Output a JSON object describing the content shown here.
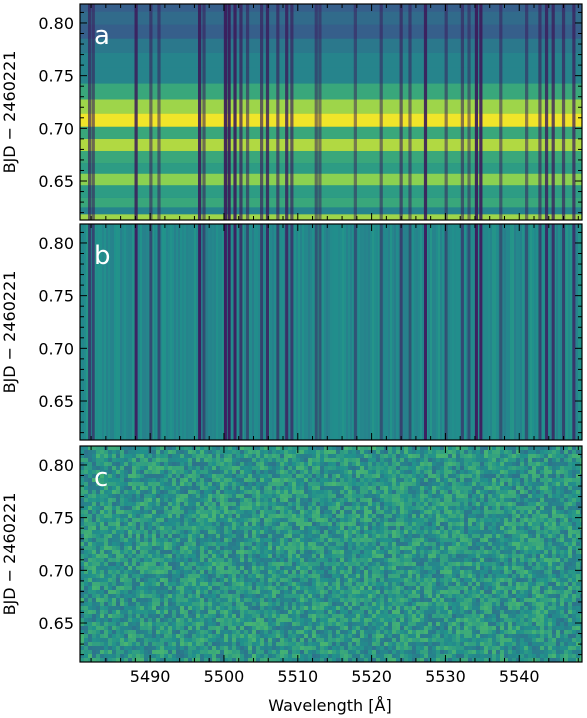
{
  "figure": {
    "xlabel": "Wavelength [Å]",
    "colormap": [
      "#440154",
      "#3b528b",
      "#21918c",
      "#5ec962",
      "#fde725"
    ]
  },
  "chart_data": [
    {
      "type": "heatmap",
      "panel": "a",
      "ylabel": "BJD − 2460221",
      "xlim": [
        5480.5,
        5548.5
      ],
      "ylim": [
        0.613,
        0.818
      ],
      "xticks": [
        5490,
        5500,
        5510,
        5520,
        5530,
        5540
      ],
      "yticks": [
        0.65,
        0.7,
        0.75,
        0.8
      ],
      "ytick_labels": [
        "0.65",
        "0.70",
        "0.75",
        "0.80"
      ],
      "row_brightness": [
        {
          "y": 0.615,
          "level": 0.85
        },
        {
          "y": 0.622,
          "level": 0.45
        },
        {
          "y": 0.628,
          "level": 0.6
        },
        {
          "y": 0.64,
          "level": 0.55
        },
        {
          "y": 0.652,
          "level": 0.82
        },
        {
          "y": 0.662,
          "level": 0.55
        },
        {
          "y": 0.672,
          "level": 0.6
        },
        {
          "y": 0.685,
          "level": 0.88
        },
        {
          "y": 0.695,
          "level": 0.6
        },
        {
          "y": 0.708,
          "level": 0.98
        },
        {
          "y": 0.72,
          "level": 0.85
        },
        {
          "y": 0.735,
          "level": 0.6
        },
        {
          "y": 0.75,
          "level": 0.45
        },
        {
          "y": 0.765,
          "level": 0.45
        },
        {
          "y": 0.778,
          "level": 0.4
        },
        {
          "y": 0.792,
          "level": 0.3
        },
        {
          "y": 0.805,
          "level": 0.35
        },
        {
          "y": 0.816,
          "level": 0.3
        }
      ]
    },
    {
      "type": "heatmap",
      "panel": "b",
      "ylabel": "BJD − 2460221",
      "xlim": [
        5480.5,
        5548.5
      ],
      "ylim": [
        0.613,
        0.818
      ],
      "xticks": [
        5490,
        5500,
        5510,
        5520,
        5530,
        5540
      ],
      "yticks": [
        0.65,
        0.7,
        0.75,
        0.8
      ],
      "ytick_labels": [
        "0.65",
        "0.70",
        "0.75",
        "0.80"
      ]
    },
    {
      "type": "heatmap",
      "panel": "c",
      "ylabel": "BJD − 2460221",
      "xlim": [
        5480.5,
        5548.5
      ],
      "ylim": [
        0.613,
        0.818
      ],
      "xticks": [
        5490,
        5500,
        5510,
        5520,
        5530,
        5540
      ],
      "xtick_labels": [
        "5490",
        "5500",
        "5510",
        "5520",
        "5530",
        "5540"
      ],
      "yticks": [
        0.65,
        0.7,
        0.75,
        0.8
      ],
      "ytick_labels": [
        "0.65",
        "0.70",
        "0.75",
        "0.80"
      ]
    }
  ],
  "absorption_lines": [
    {
      "wavelength": 5481.8,
      "depth": 0.5
    },
    {
      "wavelength": 5482.3,
      "depth": 0.4
    },
    {
      "wavelength": 5488.1,
      "depth": 0.85
    },
    {
      "wavelength": 5490.1,
      "depth": 0.35
    },
    {
      "wavelength": 5491.2,
      "depth": 0.3
    },
    {
      "wavelength": 5496.7,
      "depth": 0.9
    },
    {
      "wavelength": 5497.3,
      "depth": 0.35
    },
    {
      "wavelength": 5500.2,
      "depth": 0.95
    },
    {
      "wavelength": 5500.7,
      "depth": 0.95
    },
    {
      "wavelength": 5501.5,
      "depth": 0.9
    },
    {
      "wavelength": 5502.3,
      "depth": 0.6
    },
    {
      "wavelength": 5503.2,
      "depth": 0.35
    },
    {
      "wavelength": 5505.1,
      "depth": 0.5
    },
    {
      "wavelength": 5505.9,
      "depth": 0.75
    },
    {
      "wavelength": 5507.3,
      "depth": 0.45
    },
    {
      "wavelength": 5508.5,
      "depth": 0.75
    },
    {
      "wavelength": 5509.2,
      "depth": 0.5
    },
    {
      "wavelength": 5512.5,
      "depth": 0.3
    },
    {
      "wavelength": 5513.0,
      "depth": 0.25
    },
    {
      "wavelength": 5517.8,
      "depth": 0.25
    },
    {
      "wavelength": 5521.3,
      "depth": 0.3
    },
    {
      "wavelength": 5524.0,
      "depth": 0.45
    },
    {
      "wavelength": 5525.2,
      "depth": 0.3
    },
    {
      "wavelength": 5527.3,
      "depth": 0.9
    },
    {
      "wavelength": 5530.1,
      "depth": 0.3
    },
    {
      "wavelength": 5532.3,
      "depth": 0.35
    },
    {
      "wavelength": 5533.2,
      "depth": 0.25
    },
    {
      "wavelength": 5534.2,
      "depth": 0.95
    },
    {
      "wavelength": 5534.8,
      "depth": 0.9
    },
    {
      "wavelength": 5537.5,
      "depth": 0.3
    },
    {
      "wavelength": 5541.0,
      "depth": 0.3
    },
    {
      "wavelength": 5542.8,
      "depth": 0.45
    },
    {
      "wavelength": 5543.7,
      "depth": 0.75
    },
    {
      "wavelength": 5544.6,
      "depth": 0.7
    },
    {
      "wavelength": 5546.0,
      "depth": 0.5
    },
    {
      "wavelength": 5547.4,
      "depth": 0.6
    }
  ]
}
